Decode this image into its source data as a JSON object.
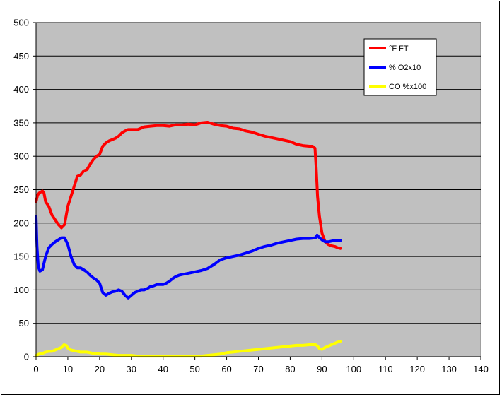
{
  "chart_data": {
    "type": "line",
    "title": "",
    "xlabel": "",
    "ylabel": "",
    "xlim": [
      0,
      140
    ],
    "ylim": [
      0,
      500
    ],
    "x_ticks": [
      0,
      10,
      20,
      30,
      40,
      50,
      60,
      70,
      80,
      90,
      100,
      110,
      120,
      130,
      140
    ],
    "y_ticks": [
      0,
      50,
      100,
      150,
      200,
      250,
      300,
      350,
      400,
      450,
      500
    ],
    "grid": "horizontal",
    "plot_background": "#c0c0c0",
    "legend_position": "top-right",
    "series": [
      {
        "name": "°F FT",
        "color": "#ff0000",
        "points": [
          [
            0,
            232
          ],
          [
            0.5,
            242
          ],
          [
            1,
            245
          ],
          [
            2,
            248
          ],
          [
            2.5,
            245
          ],
          [
            3,
            232
          ],
          [
            4,
            225
          ],
          [
            5,
            212
          ],
          [
            6,
            205
          ],
          [
            7,
            198
          ],
          [
            8,
            193
          ],
          [
            9,
            198
          ],
          [
            10,
            225
          ],
          [
            11,
            240
          ],
          [
            12,
            255
          ],
          [
            13,
            270
          ],
          [
            14,
            272
          ],
          [
            15,
            278
          ],
          [
            16,
            280
          ],
          [
            17,
            288
          ],
          [
            18,
            295
          ],
          [
            19,
            300
          ],
          [
            20,
            303
          ],
          [
            21,
            315
          ],
          [
            22,
            320
          ],
          [
            23,
            323
          ],
          [
            24,
            325
          ],
          [
            25,
            327
          ],
          [
            26,
            330
          ],
          [
            27,
            335
          ],
          [
            28,
            338
          ],
          [
            29,
            340
          ],
          [
            30,
            340
          ],
          [
            32,
            340
          ],
          [
            34,
            344
          ],
          [
            36,
            345
          ],
          [
            38,
            346
          ],
          [
            40,
            346
          ],
          [
            42,
            345
          ],
          [
            44,
            347
          ],
          [
            46,
            347
          ],
          [
            48,
            348
          ],
          [
            50,
            347
          ],
          [
            52,
            350
          ],
          [
            54,
            351
          ],
          [
            56,
            348
          ],
          [
            58,
            346
          ],
          [
            60,
            345
          ],
          [
            62,
            342
          ],
          [
            64,
            341
          ],
          [
            66,
            338
          ],
          [
            68,
            336
          ],
          [
            70,
            333
          ],
          [
            72,
            330
          ],
          [
            74,
            328
          ],
          [
            76,
            326
          ],
          [
            78,
            324
          ],
          [
            80,
            322
          ],
          [
            82,
            318
          ],
          [
            84,
            316
          ],
          [
            86,
            315
          ],
          [
            87,
            315
          ],
          [
            87.8,
            312
          ],
          [
            88.2,
            280
          ],
          [
            88.6,
            240
          ],
          [
            89.2,
            210
          ],
          [
            90,
            185
          ],
          [
            91,
            172
          ],
          [
            92,
            168
          ],
          [
            93,
            166
          ],
          [
            94,
            165
          ],
          [
            95,
            163
          ],
          [
            95.8,
            162
          ]
        ]
      },
      {
        "name": "% O2x10",
        "color": "#0000ff",
        "points": [
          [
            0,
            210
          ],
          [
            0.3,
            165
          ],
          [
            0.7,
            135
          ],
          [
            1.2,
            128
          ],
          [
            2,
            130
          ],
          [
            3,
            150
          ],
          [
            4,
            163
          ],
          [
            5,
            168
          ],
          [
            6,
            172
          ],
          [
            7,
            175
          ],
          [
            8,
            178
          ],
          [
            9,
            178
          ],
          [
            10,
            168
          ],
          [
            11,
            150
          ],
          [
            12,
            138
          ],
          [
            13,
            133
          ],
          [
            14,
            133
          ],
          [
            15,
            130
          ],
          [
            16,
            127
          ],
          [
            17,
            122
          ],
          [
            18,
            118
          ],
          [
            19,
            115
          ],
          [
            20,
            110
          ],
          [
            21,
            96
          ],
          [
            22,
            92
          ],
          [
            23,
            95
          ],
          [
            24,
            97
          ],
          [
            25,
            98
          ],
          [
            26,
            100
          ],
          [
            27,
            98
          ],
          [
            28,
            92
          ],
          [
            29,
            88
          ],
          [
            30,
            92
          ],
          [
            31,
            96
          ],
          [
            32,
            98
          ],
          [
            33,
            100
          ],
          [
            34,
            100
          ],
          [
            35,
            102
          ],
          [
            36,
            105
          ],
          [
            37,
            106
          ],
          [
            38,
            108
          ],
          [
            39,
            108
          ],
          [
            40,
            108
          ],
          [
            41,
            110
          ],
          [
            42,
            113
          ],
          [
            43,
            117
          ],
          [
            44,
            120
          ],
          [
            45,
            122
          ],
          [
            46,
            123
          ],
          [
            47,
            124
          ],
          [
            48,
            125
          ],
          [
            50,
            127
          ],
          [
            52,
            129
          ],
          [
            54,
            132
          ],
          [
            56,
            138
          ],
          [
            58,
            145
          ],
          [
            60,
            148
          ],
          [
            62,
            150
          ],
          [
            64,
            152
          ],
          [
            66,
            155
          ],
          [
            68,
            158
          ],
          [
            70,
            162
          ],
          [
            72,
            165
          ],
          [
            74,
            167
          ],
          [
            76,
            170
          ],
          [
            78,
            172
          ],
          [
            80,
            174
          ],
          [
            82,
            176
          ],
          [
            84,
            177
          ],
          [
            86,
            177
          ],
          [
            88,
            178
          ],
          [
            88.5,
            182
          ],
          [
            89.2,
            178
          ],
          [
            90,
            175
          ],
          [
            91,
            172
          ],
          [
            92,
            172
          ],
          [
            93,
            173
          ],
          [
            94,
            174
          ],
          [
            95,
            174
          ],
          [
            95.8,
            174
          ]
        ]
      },
      {
        "name": "CO %x100",
        "color": "#ffff00",
        "points": [
          [
            0,
            2
          ],
          [
            1,
            4
          ],
          [
            2,
            5
          ],
          [
            3,
            7
          ],
          [
            4,
            8
          ],
          [
            5,
            8
          ],
          [
            6,
            10
          ],
          [
            7,
            12
          ],
          [
            8,
            14
          ],
          [
            8.8,
            18
          ],
          [
            9.5,
            17
          ],
          [
            10,
            13
          ],
          [
            11,
            10
          ],
          [
            12,
            9
          ],
          [
            13,
            8
          ],
          [
            14,
            7
          ],
          [
            15,
            7
          ],
          [
            16,
            7
          ],
          [
            17,
            6
          ],
          [
            18,
            5
          ],
          [
            19,
            5
          ],
          [
            20,
            4
          ],
          [
            22,
            4
          ],
          [
            24,
            3
          ],
          [
            26,
            2
          ],
          [
            28,
            2
          ],
          [
            30,
            2
          ],
          [
            32,
            1
          ],
          [
            34,
            1
          ],
          [
            36,
            1
          ],
          [
            38,
            1
          ],
          [
            40,
            1
          ],
          [
            42,
            1
          ],
          [
            44,
            1
          ],
          [
            46,
            1
          ],
          [
            48,
            1
          ],
          [
            50,
            1
          ],
          [
            52,
            1
          ],
          [
            54,
            2
          ],
          [
            56,
            3
          ],
          [
            58,
            4
          ],
          [
            60,
            6
          ],
          [
            62,
            7
          ],
          [
            64,
            8
          ],
          [
            66,
            9
          ],
          [
            68,
            10
          ],
          [
            70,
            11
          ],
          [
            72,
            12
          ],
          [
            74,
            13
          ],
          [
            76,
            14
          ],
          [
            78,
            15
          ],
          [
            80,
            16
          ],
          [
            82,
            17
          ],
          [
            84,
            17
          ],
          [
            86,
            18
          ],
          [
            88,
            18
          ],
          [
            88.6,
            16
          ],
          [
            89.2,
            12
          ],
          [
            90,
            11
          ],
          [
            91,
            14
          ],
          [
            92,
            16
          ],
          [
            93,
            18
          ],
          [
            94,
            20
          ],
          [
            95,
            22
          ],
          [
            95.8,
            23
          ]
        ]
      }
    ]
  }
}
